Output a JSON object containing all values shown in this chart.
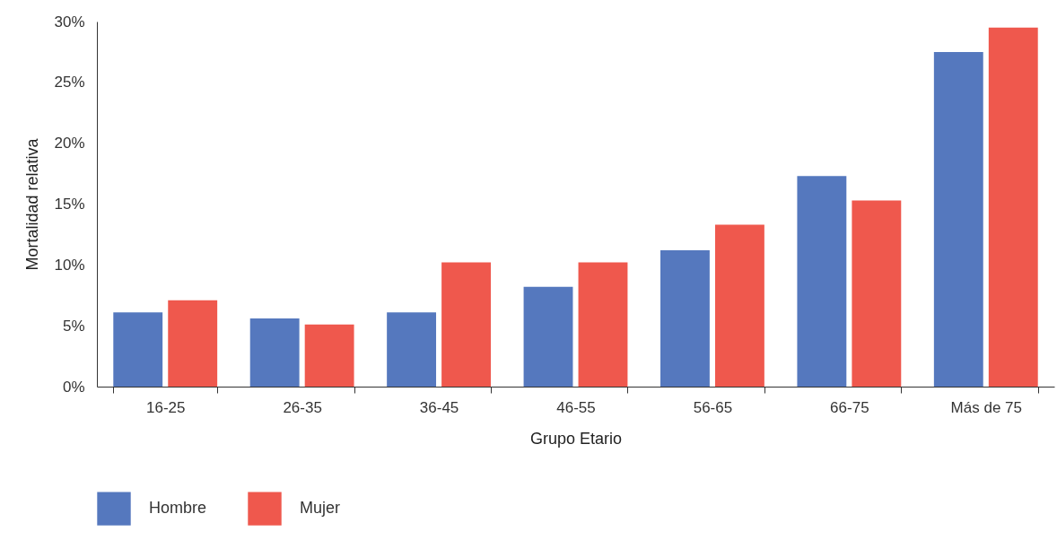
{
  "chart_data": {
    "type": "bar",
    "xlabel": "Grupo Etario",
    "ylabel": "Mortalidad relativa",
    "categories": [
      "16-25",
      "26-35",
      "36-45",
      "46-55",
      "56-65",
      "66-75",
      "Más de 75"
    ],
    "series": [
      {
        "name": "Hombre",
        "color": "#5578be",
        "values": [
          6.1,
          5.6,
          6.1,
          8.2,
          11.2,
          17.3,
          27.5
        ]
      },
      {
        "name": "Mujer",
        "color": "#ef584d",
        "values": [
          7.1,
          5.1,
          10.2,
          10.2,
          13.3,
          15.3,
          29.5
        ]
      }
    ],
    "ylim": [
      0,
      30
    ],
    "yticks": [
      {
        "value": 0,
        "label": "0%"
      },
      {
        "value": 5,
        "label": "5%"
      },
      {
        "value": 10,
        "label": "10%"
      },
      {
        "value": 15,
        "label": "15%"
      },
      {
        "value": 20,
        "label": "20%"
      },
      {
        "value": 25,
        "label": "25%"
      },
      {
        "value": 30,
        "label": "30%"
      }
    ],
    "grid": false,
    "legend": "bottom"
  }
}
